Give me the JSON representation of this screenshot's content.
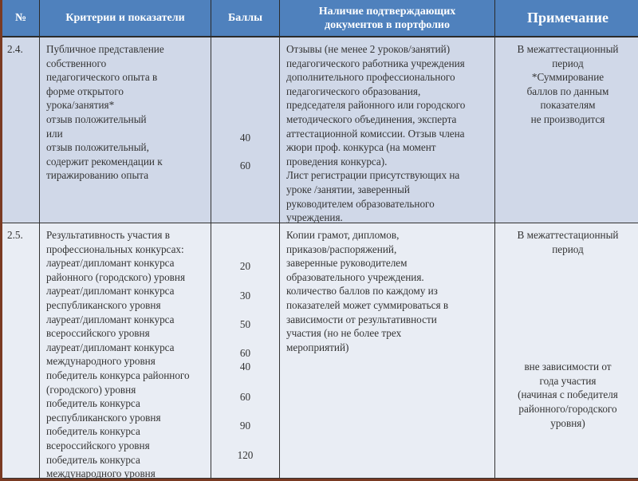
{
  "header": {
    "num": "№",
    "criteria": "Критерии и показатели",
    "points": "Баллы",
    "documents": "Наличие подтверждающих документов в портфолио",
    "note": "Примечание"
  },
  "rows": [
    {
      "num": "2.4.",
      "criteria": [
        "Публичное представление",
        "собственного",
        "педагогического опыта в",
        "форме открытого",
        "урока/занятия*",
        "отзыв положительный",
        "или",
        "отзыв положительный,",
        "содержит рекомендации к",
        "тиражированию опыта"
      ],
      "points": [
        "40",
        "60"
      ],
      "documents": [
        "Отзывы (не менее 2 уроков/занятий)",
        "педагогического работника учреждения",
        "дополнительного профессионального",
        "педагогического образования,",
        "председателя районного или городского",
        "методического объединения, эксперта",
        "аттестационной комиссии. Отзыв члена",
        "жюри проф. конкурса (на момент",
        "проведения конкурса).",
        "Лист регистрации присутствующих на",
        "уроке /занятии, заверенный",
        "руководителем образовательного",
        "учреждения."
      ],
      "note": [
        "В межаттестационный",
        "период",
        "*Суммирование",
        "баллов по данным",
        "показателям",
        "не производится"
      ]
    },
    {
      "num": "2.5.",
      "criteria": [
        "Результативность участия в",
        "профессиональных конкурсах:",
        "лауреат/дипломант конкурса",
        "районного (городского) уровня",
        "лауреат/дипломант конкурса",
        "республиканского уровня",
        "лауреат/дипломант конкурса",
        "всероссийского уровня",
        "лауреат/дипломант конкурса",
        "международного уровня",
        "победитель конкурса районного",
        "(городского) уровня",
        "победитель конкурса",
        "республиканского уровня",
        "победитель конкурса",
        "всероссийского уровня",
        "победитель конкурса",
        "международного уровня"
      ],
      "points": [
        "20",
        "30",
        "50",
        "60",
        "40",
        "60",
        "90",
        "120"
      ],
      "documents": [
        "Копии грамот, дипломов,",
        "приказов/распоряжений,",
        "заверенные руководителем",
        "образовательного учреждения.",
        "количество баллов по каждому из",
        "показателей может суммироваться  в",
        "зависимости от результативности",
        "участия (но не более трех",
        "мероприятий)"
      ],
      "note": [
        "В межаттестационный",
        "период"
      ],
      "note2": [
        "вне зависимости от",
        "года участия",
        "(начиная с победителя",
        "районного/городского",
        "уровня)"
      ]
    }
  ]
}
